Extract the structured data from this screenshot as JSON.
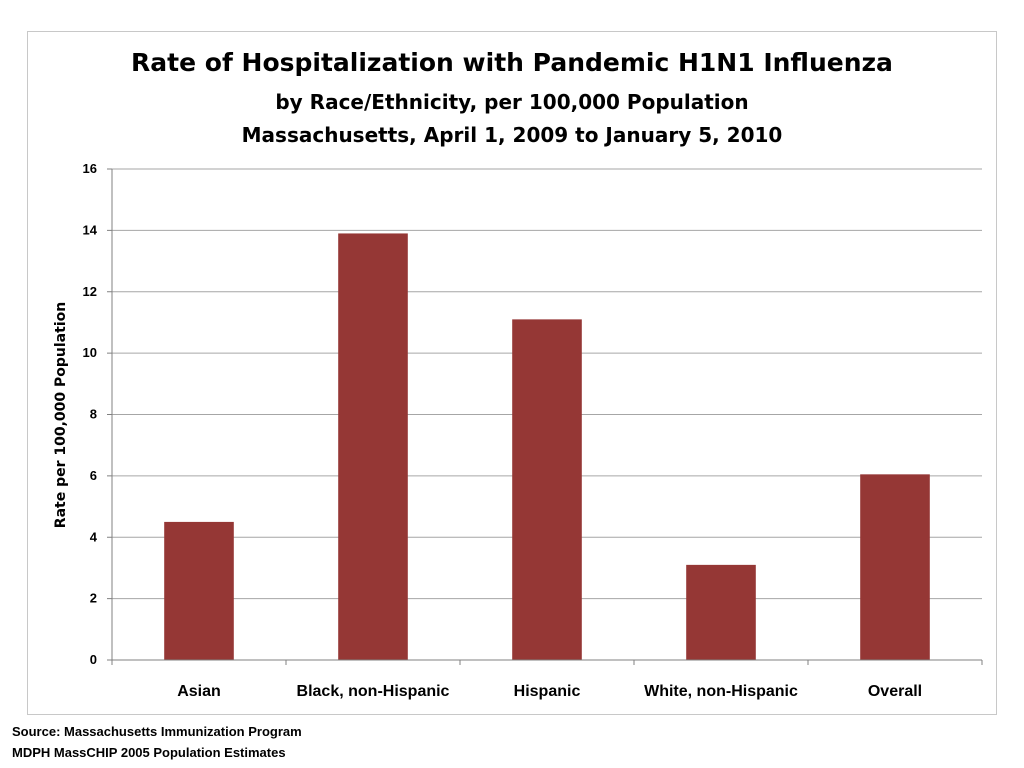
{
  "chart_data": {
    "type": "bar",
    "title": "Rate of Hospitalization with Pandemic H1N1 Influenza",
    "subtitle_lines": [
      "by Race/Ethnicity, per 100,000 Population",
      "Massachusetts, April 1, 2009 to January 5, 2010"
    ],
    "xlabel": "",
    "ylabel": "Rate per 100,000 Population",
    "categories": [
      "Asian",
      "Black, non-Hispanic",
      "Hispanic",
      "White, non-Hispanic",
      "Overall"
    ],
    "values": [
      4.5,
      13.9,
      11.1,
      3.1,
      6.05
    ],
    "ylim": [
      0,
      16
    ],
    "yticks": [
      0,
      2,
      4,
      6,
      8,
      10,
      12,
      14,
      16
    ],
    "grid": true,
    "legend": "none",
    "bar_color": "#953735",
    "grid_color": "#a6a6a6"
  },
  "source": {
    "line1": "Source: Massachusetts Immunization Program",
    "line2": "MDPH MassCHIP 2005 Population Estimates"
  }
}
